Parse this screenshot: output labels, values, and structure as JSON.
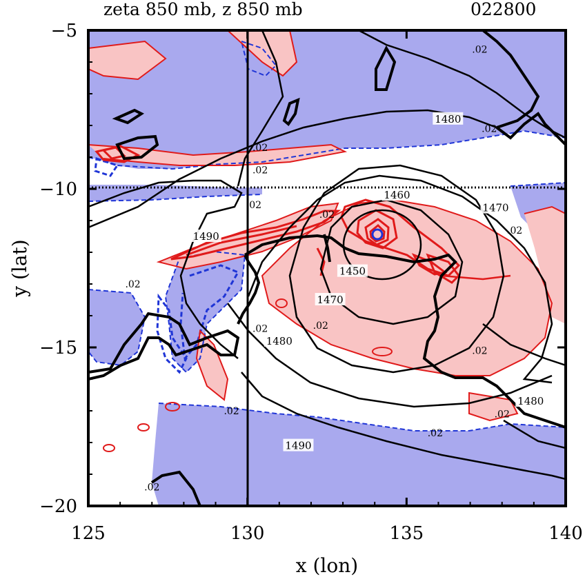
{
  "chart_data": {
    "type": "contour",
    "title_left": "zeta 850 mb, z 850 mb",
    "title_right": "022800",
    "xlabel": "x (lon)",
    "ylabel": "y (lat)",
    "xlim": [
      125,
      140
    ],
    "ylim": [
      -20,
      -5
    ],
    "x_ticks": [
      125,
      130,
      135,
      140
    ],
    "y_ticks": [
      -5,
      -10,
      -15,
      -20
    ],
    "x_tick_labels": [
      "125",
      "130",
      "135",
      "140"
    ],
    "y_tick_labels": [
      "−5",
      "−10",
      "−15",
      "−20"
    ],
    "reference_lines": {
      "lon": 130,
      "lat": -10
    },
    "center": {
      "lon": 134.1,
      "lat": -11.5
    },
    "colors": {
      "positive_fill": "#f9c4c4",
      "negative_fill": "#a9a9ee",
      "positive_line": "#e01a1a",
      "negative_line": "#1f35d6",
      "height_line": "#000000",
      "coast_line": "#000000"
    },
    "height_contours": [
      {
        "level": 1450,
        "rx": 1.1,
        "ry": 1.1,
        "cx": 134.3,
        "cy": -11.8,
        "label": "1450",
        "label_pos": [
          133.3,
          -12.6
        ]
      },
      {
        "level": 1460,
        "rx": 2.0,
        "ry": 2.0,
        "cx": 134.4,
        "cy": -12.1,
        "label": "1460",
        "label_pos": [
          134.7,
          -10.2
        ]
      },
      {
        "level": 1470,
        "rx": 3.3,
        "ry": 3.5,
        "cx": 134.4,
        "cy": -12.6,
        "label": "1470",
        "label_pos": [
          132.6,
          -13.5
        ]
      },
      {
        "level": 1470,
        "label": "1470",
        "label_pos": [
          137.8,
          -10.6
        ]
      },
      {
        "level": 1480,
        "label": "1480",
        "label_pos": [
          131.0,
          -14.8
        ]
      },
      {
        "level": 1480,
        "label": "1480",
        "label_pos": [
          136.3,
          -7.8
        ]
      },
      {
        "level": 1480,
        "label": "1480",
        "label_pos": [
          138.9,
          -16.7
        ]
      },
      {
        "level": 1490,
        "label": "1490",
        "label_pos": [
          128.7,
          -11.5
        ]
      },
      {
        "level": 1490,
        "label": "1490",
        "label_pos": [
          131.6,
          -18.1
        ]
      }
    ],
    "vorticity_labels": [
      {
        "text": ".02",
        "pos": [
          137.3,
          -5.6
        ]
      },
      {
        "text": ".02",
        "pos": [
          137.6,
          -8.1
        ]
      },
      {
        "text": ".02",
        "pos": [
          130.4,
          -8.7
        ]
      },
      {
        "text": ".02",
        "pos": [
          130.4,
          -9.4
        ]
      },
      {
        "text": ".02",
        "pos": [
          130.2,
          -10.5
        ]
      },
      {
        "text": ".02",
        "pos": [
          132.5,
          -10.8
        ]
      },
      {
        "text": ".02",
        "pos": [
          138.4,
          -11.3
        ]
      },
      {
        "text": ".02",
        "pos": [
          126.4,
          -13.0
        ]
      },
      {
        "text": ".02",
        "pos": [
          130.4,
          -14.4
        ]
      },
      {
        "text": ".02",
        "pos": [
          132.3,
          -14.3
        ]
      },
      {
        "text": ".02",
        "pos": [
          137.3,
          -15.1
        ]
      },
      {
        "text": ".02",
        "pos": [
          129.5,
          -17.0
        ]
      },
      {
        "text": ".02",
        "pos": [
          135.9,
          -17.7
        ]
      },
      {
        "text": ".02",
        "pos": [
          138.0,
          -17.1
        ]
      },
      {
        "text": ".02",
        "pos": [
          127.0,
          -19.4
        ]
      }
    ]
  }
}
